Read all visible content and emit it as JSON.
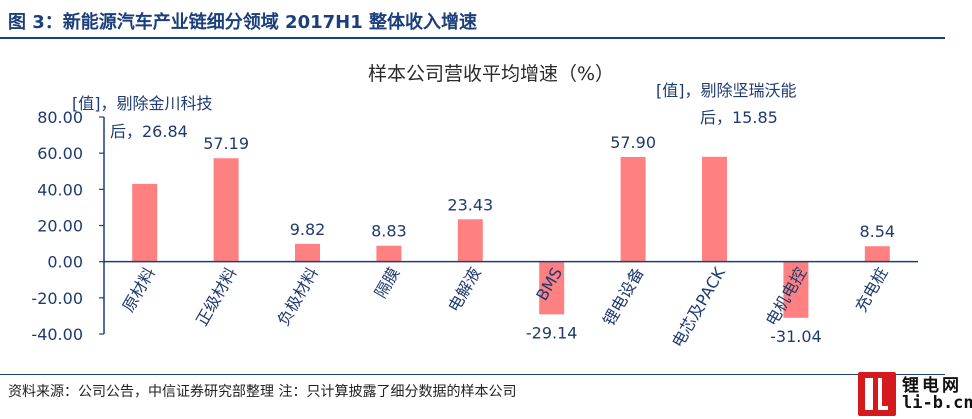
{
  "figure_title": "图 3：新能源汽车产业链细分领域 2017H1 整体收入增速",
  "source_note": "资料来源：公司公告，中信证券研究部整理    注：只计算披露了细分数据的样本公司",
  "logo": {
    "cn": "锂电网",
    "url": "li-b.cn"
  },
  "colors": {
    "bar": "#ff8080",
    "title": "#1b3f7d",
    "value_label": "#1f3a70",
    "tick_label": "#1f3a70",
    "axis": "#1b3f7d"
  },
  "chart_data": {
    "type": "bar",
    "title": "样本公司营收平均增速（%）",
    "xlabel": "",
    "ylabel": "",
    "ylim": [
      -40,
      80
    ],
    "yticks": [
      80,
      60,
      40,
      20,
      0,
      -20,
      -40
    ],
    "ytick_labels": [
      "80.00",
      "60.00",
      "40.00",
      "20.00",
      "0.00",
      "-20.00",
      "-40.00"
    ],
    "categories": [
      "原材料",
      "正级材料",
      "负极材料",
      "隔膜",
      "电解液",
      "BMS",
      "锂电设备",
      "电芯及PACK",
      "电机电控",
      "充电桩"
    ],
    "values": [
      43,
      57.19,
      9.82,
      8.83,
      23.43,
      -29.14,
      57.9,
      58,
      -31.04,
      8.54
    ],
    "value_labels": [
      "",
      "57.19",
      "9.82",
      "8.83",
      "23.43",
      "-29.14",
      "57.90",
      "",
      "-31.04",
      "8.54"
    ],
    "annotations": [
      {
        "lines": [
          "[值]，剔除金川科技",
          "后，26.84"
        ]
      },
      {
        "lines": [
          "[值]，剔除坚瑞沃能",
          "后，15.85"
        ]
      }
    ],
    "grid": false,
    "legend": "none"
  }
}
